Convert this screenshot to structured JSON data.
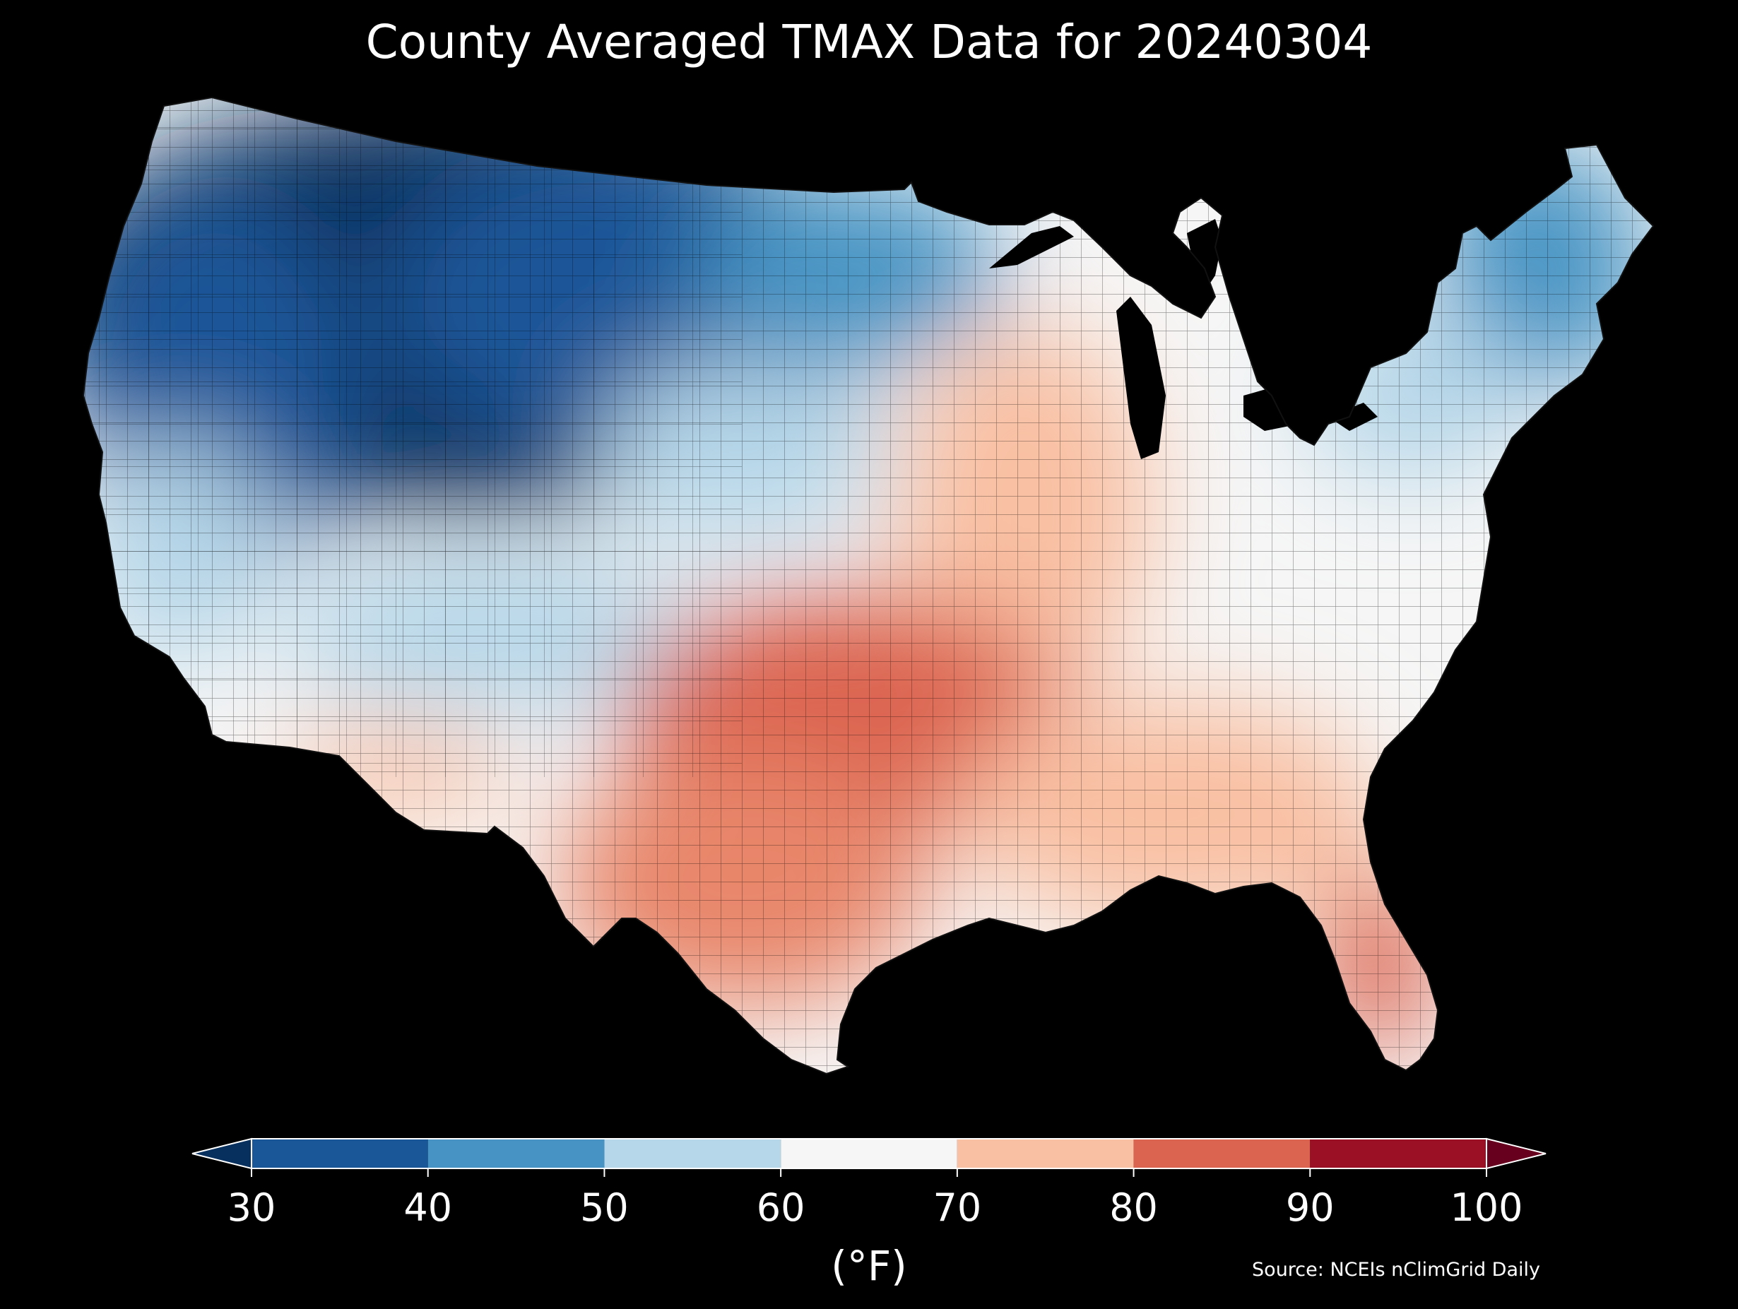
{
  "title": "County Averaged TMAX Data for 20240304",
  "colorbar": {
    "ticks": [
      "30",
      "40",
      "50",
      "60",
      "70",
      "80",
      "90",
      "100"
    ],
    "units": "(°F)",
    "bins": [
      {
        "from": 30,
        "to": 40,
        "color": "#1a5799"
      },
      {
        "from": 40,
        "to": 50,
        "color": "#4794c4"
      },
      {
        "from": 50,
        "to": 60,
        "color": "#b6d7e9"
      },
      {
        "from": 60,
        "to": 70,
        "color": "#f6f6f6"
      },
      {
        "from": 70,
        "to": 80,
        "color": "#f9c0a3"
      },
      {
        "from": 80,
        "to": 90,
        "color": "#db6450"
      },
      {
        "from": 90,
        "to": 100,
        "color": "#9c1026"
      }
    ],
    "under_color": "#08305f",
    "over_color": "#67001f",
    "extend": "both"
  },
  "source": "Source: NCEIs nClimGrid Daily",
  "colors": {
    "background": "#000000",
    "text": "#ffffff"
  }
}
